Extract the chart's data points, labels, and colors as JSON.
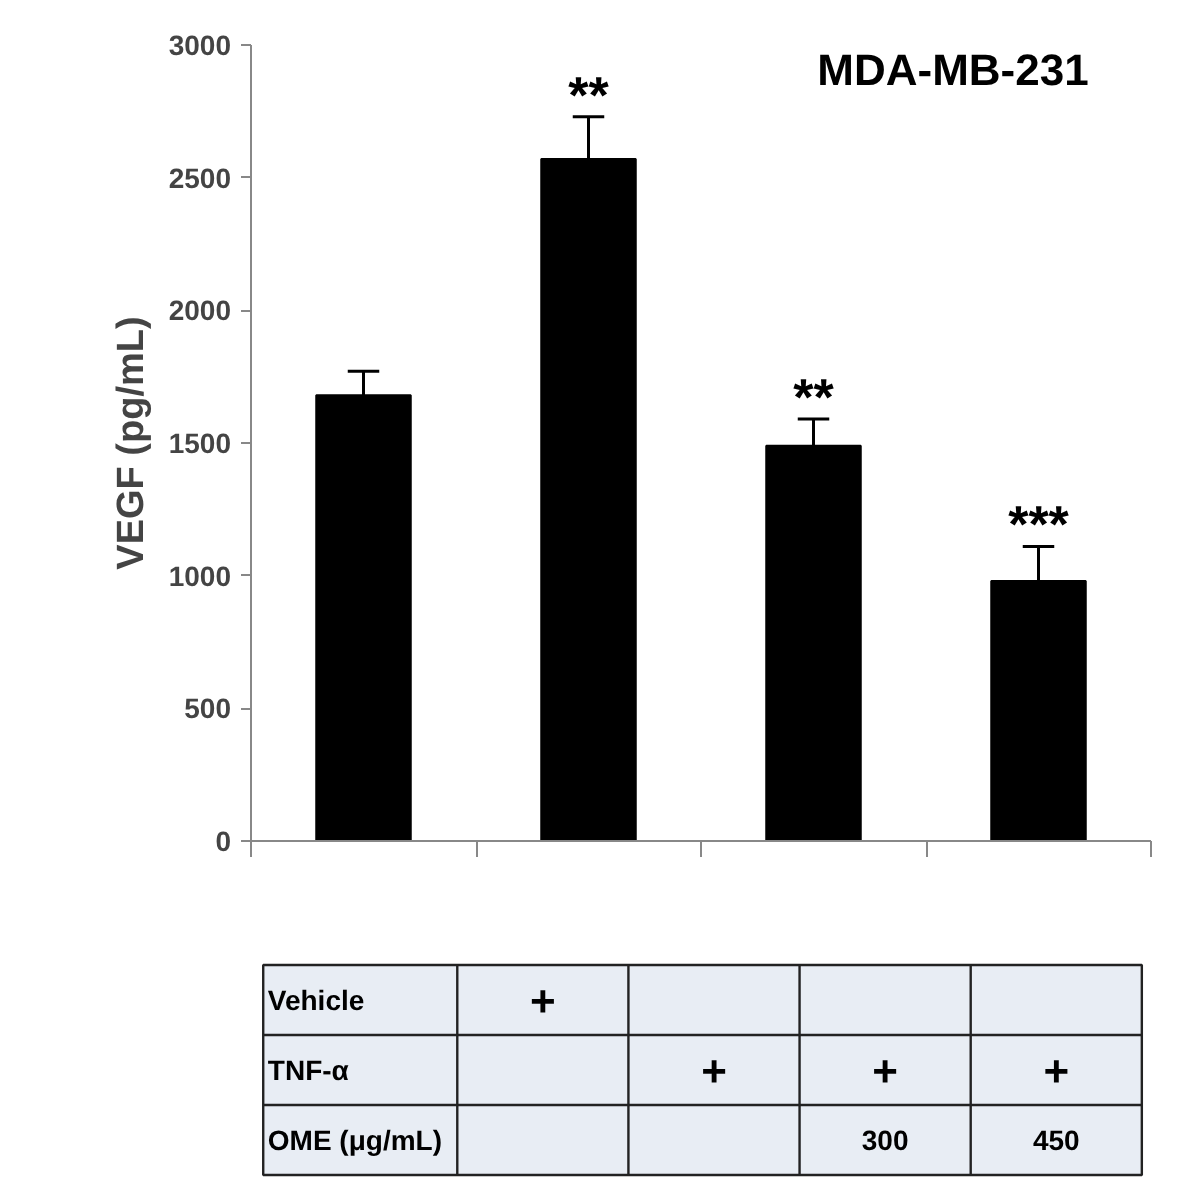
{
  "chart_data": {
    "type": "bar",
    "title": "MDA-MB-231",
    "ylabel": "VEGF (pg/mL)",
    "categories": [
      null,
      null,
      null,
      null
    ],
    "values": [
      1680,
      2570,
      1490,
      980
    ],
    "errors": [
      90,
      160,
      100,
      130
    ],
    "value_labels": [
      null,
      "**",
      "**",
      "***"
    ],
    "color": "#000000",
    "ylim": [
      0,
      3000
    ],
    "yticks": [
      0,
      500,
      1000,
      1500,
      2000,
      2500,
      3000
    ],
    "grid": false,
    "annotations": [
      "Vehicle",
      "+",
      null,
      null,
      null,
      "TNF-α",
      null,
      "+",
      "+",
      "+",
      "OME (μg/mL)",
      null,
      null,
      "300",
      "450"
    ]
  }
}
